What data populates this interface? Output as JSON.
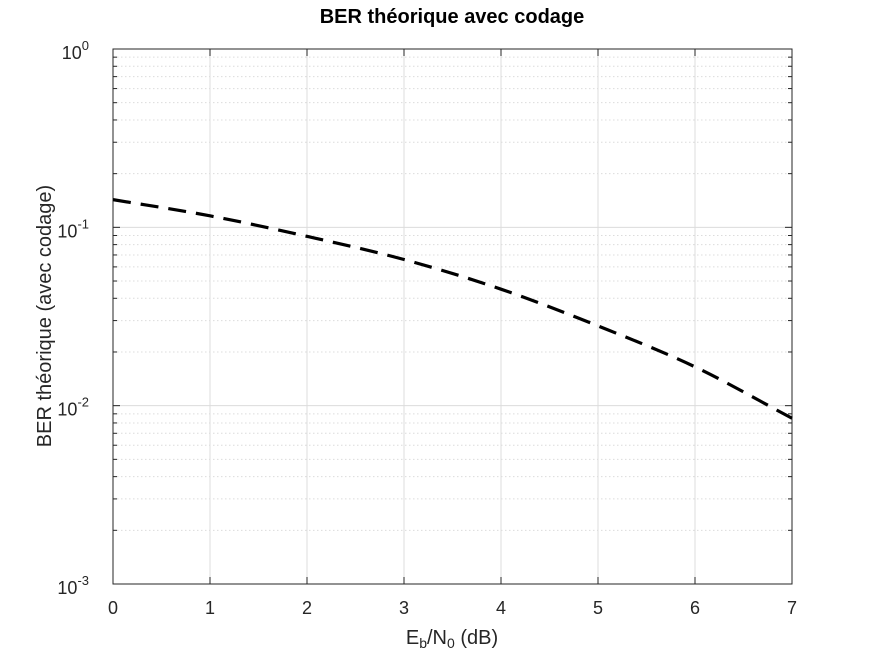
{
  "chart_data": {
    "type": "line",
    "title": "BER théorique avec codage",
    "xlabel": {
      "main": "E",
      "sub1": "b",
      "mid": "/N",
      "sub2": "0",
      "tail": " (dB)"
    },
    "ylabel": "BER théorique (avec codage)",
    "xlim": [
      0,
      7
    ],
    "ylim": [
      0.001,
      1
    ],
    "yscale": "log",
    "grid": true,
    "x_ticks": [
      "0",
      "1",
      "2",
      "3",
      "4",
      "5",
      "6",
      "7"
    ],
    "y_ticks": [
      {
        "value": 1,
        "base": "10",
        "exp": "0"
      },
      {
        "value": 0.1,
        "base": "10",
        "exp": "-1"
      },
      {
        "value": 0.01,
        "base": "10",
        "exp": "-2"
      },
      {
        "value": 0.001,
        "base": "10",
        "exp": "-3"
      }
    ],
    "series": [
      {
        "line_style": "dashed",
        "color": "#000000",
        "x": [
          0,
          1,
          2,
          3,
          4,
          5,
          6,
          7
        ],
        "y": [
          0.143,
          0.116,
          0.089,
          0.066,
          0.045,
          0.028,
          0.0165,
          0.0085
        ]
      }
    ]
  }
}
